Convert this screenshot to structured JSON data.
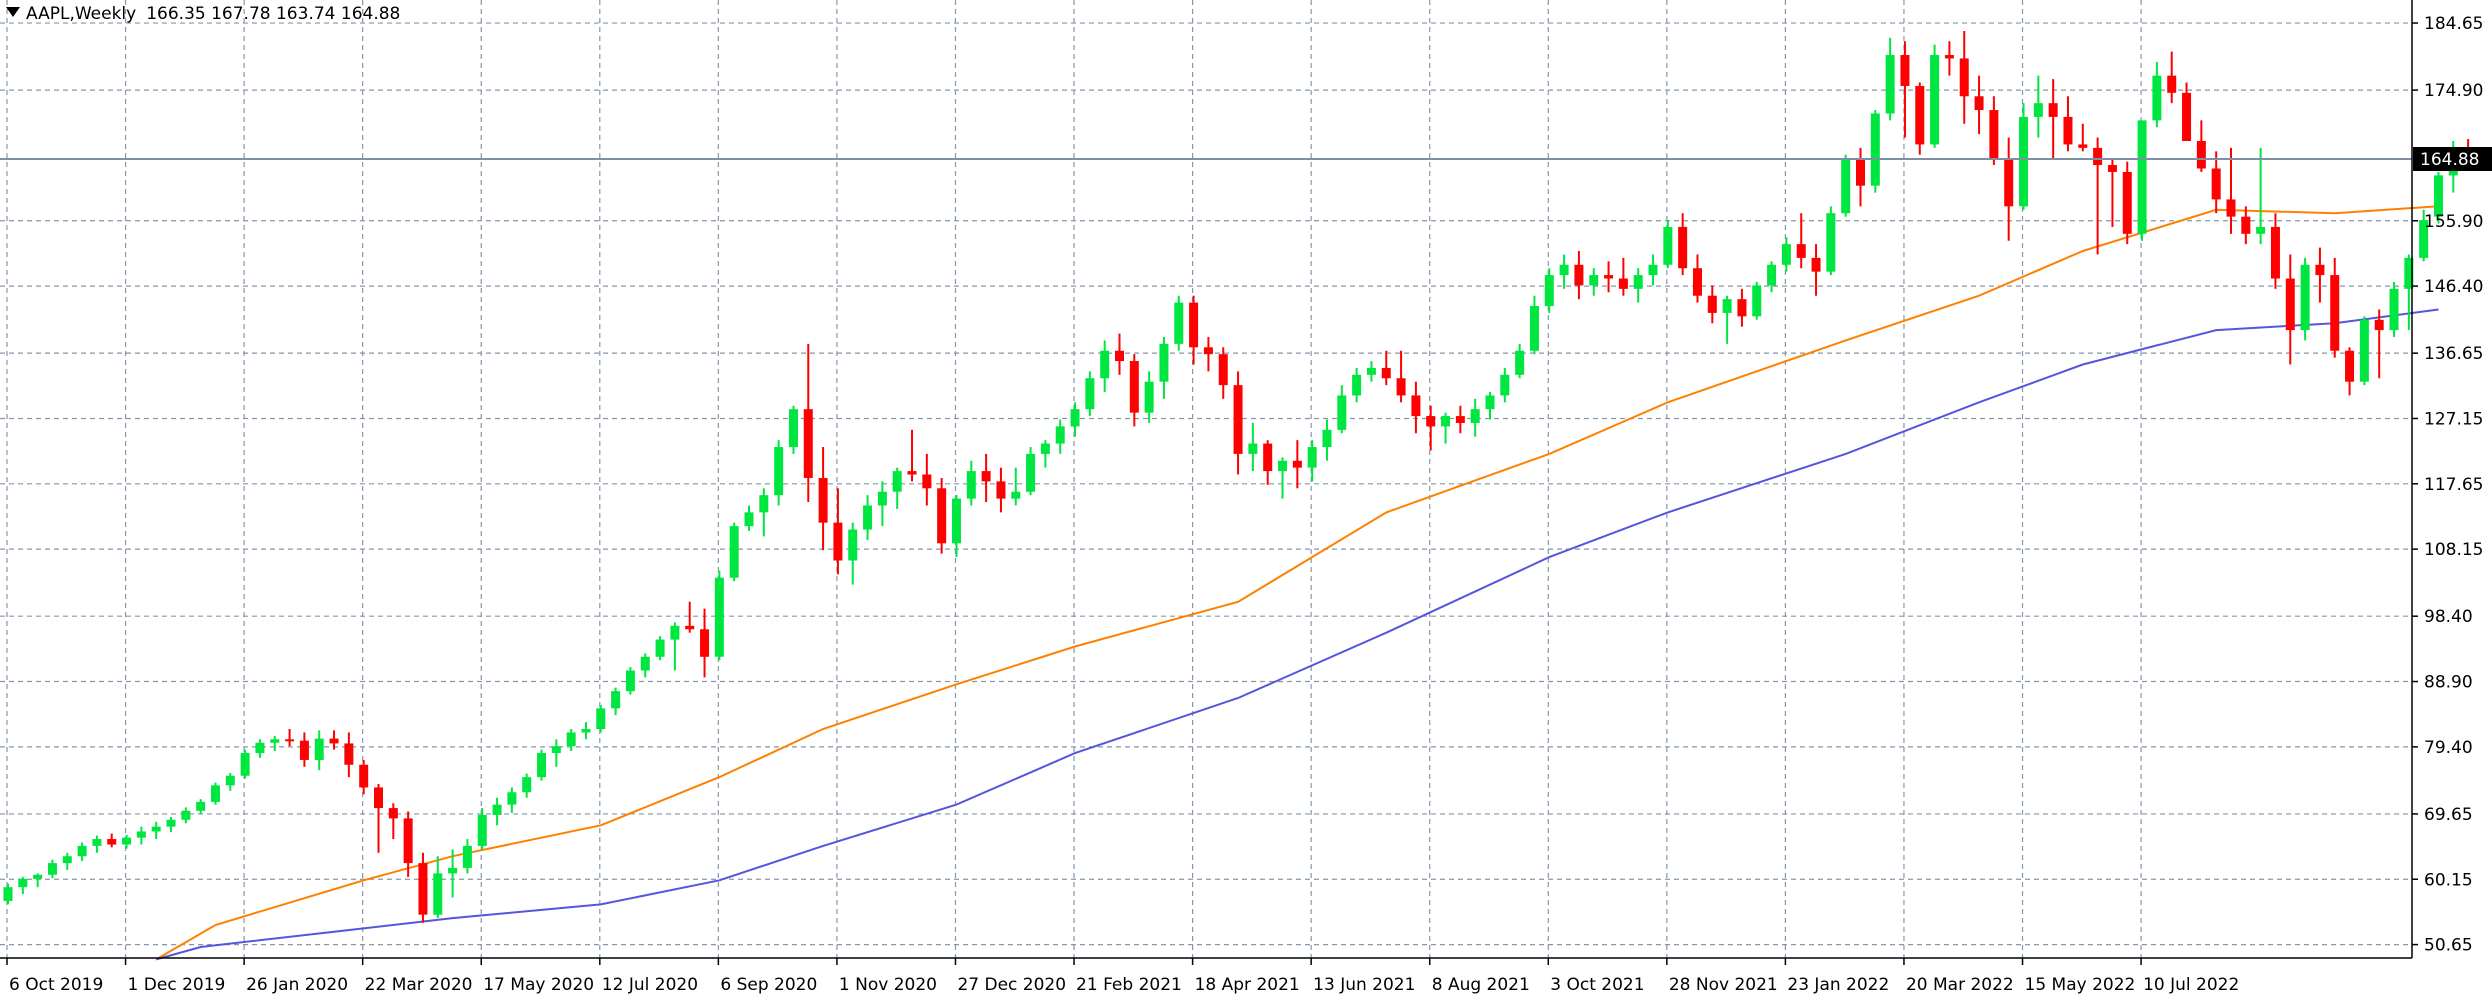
{
  "header": {
    "symbol_timeframe": "AAPL,Weekly",
    "ohlc": "166.35 167.78 163.74 164.88"
  },
  "colors": {
    "background": "#ffffff",
    "grid": "#8597ab",
    "bull": "#00e640",
    "bear": "#ff0000",
    "ma_fast": "#ff8000",
    "ma_slow": "#5555dd",
    "price_line": "#7f8fa8",
    "price_tag_bg": "#000000",
    "price_tag_text": "#ffffff"
  },
  "chart_data": {
    "type": "candlestick",
    "timeframe": "Weekly",
    "ylim": [
      48.7,
      188.0
    ],
    "current_price": 164.88,
    "current_price_label": "164.88",
    "y_ticks": [
      "184.65",
      "174.90",
      "164.88",
      "155.90",
      "146.40",
      "136.65",
      "127.15",
      "117.65",
      "108.15",
      "98.40",
      "88.90",
      "79.40",
      "69.65",
      "60.15",
      "50.65"
    ],
    "x_labels": [
      "6 Oct 2019",
      "1 Dec 2019",
      "26 Jan 2020",
      "22 Mar 2020",
      "17 May 2020",
      "12 Jul 2020",
      "6 Sep 2020",
      "1 Nov 2020",
      "27 Dec 2020",
      "21 Feb 2021",
      "18 Apr 2021",
      "13 Jun 2021",
      "8 Aug 2021",
      "3 Oct 2021",
      "28 Nov 2021",
      "23 Jan 2022",
      "20 Mar 2022",
      "15 May 2022",
      "10 Jul 2022"
    ],
    "candles": [
      [
        57.0,
        59.5,
        56.5,
        59.0
      ],
      [
        59.0,
        60.5,
        58.0,
        60.2
      ],
      [
        60.2,
        61.0,
        59.0,
        60.8
      ],
      [
        60.8,
        63.0,
        60.3,
        62.5
      ],
      [
        62.5,
        64.0,
        61.5,
        63.5
      ],
      [
        63.5,
        65.5,
        62.8,
        65.0
      ],
      [
        65.0,
        66.5,
        64.0,
        66.0
      ],
      [
        66.0,
        66.8,
        64.8,
        65.2
      ],
      [
        65.2,
        66.6,
        64.6,
        66.2
      ],
      [
        66.2,
        67.8,
        65.2,
        67.1
      ],
      [
        67.1,
        68.5,
        66.0,
        67.8
      ],
      [
        67.8,
        69.2,
        67.0,
        68.8
      ],
      [
        68.8,
        70.6,
        68.3,
        70.1
      ],
      [
        70.1,
        71.8,
        69.6,
        71.4
      ],
      [
        71.4,
        74.2,
        71.0,
        73.8
      ],
      [
        73.8,
        75.6,
        73.0,
        75.2
      ],
      [
        75.2,
        79.0,
        74.8,
        78.5
      ],
      [
        78.5,
        80.5,
        77.8,
        80.0
      ],
      [
        80.0,
        81.0,
        78.8,
        80.5
      ],
      [
        80.5,
        82.0,
        79.5,
        80.3
      ],
      [
        80.3,
        81.5,
        76.5,
        77.5
      ],
      [
        77.5,
        81.8,
        76.0,
        80.6
      ],
      [
        80.6,
        81.8,
        79.0,
        79.9
      ],
      [
        79.9,
        81.5,
        75.0,
        76.8
      ],
      [
        76.8,
        77.5,
        72.5,
        73.5
      ],
      [
        73.5,
        74.0,
        64.0,
        70.5
      ],
      [
        70.5,
        71.2,
        66.0,
        69.0
      ],
      [
        69.0,
        70.0,
        60.5,
        62.5
      ],
      [
        62.5,
        64.0,
        53.8,
        55.0
      ],
      [
        55.0,
        63.5,
        54.5,
        61.0
      ],
      [
        61.0,
        64.5,
        57.5,
        61.8
      ],
      [
        61.8,
        66.0,
        61.0,
        65.0
      ],
      [
        65.0,
        70.5,
        64.5,
        69.5
      ],
      [
        69.5,
        72.0,
        68.0,
        71.0
      ],
      [
        71.0,
        73.5,
        69.8,
        72.8
      ],
      [
        72.8,
        75.5,
        72.0,
        75.0
      ],
      [
        75.0,
        79.0,
        74.5,
        78.5
      ],
      [
        78.5,
        80.5,
        76.5,
        79.5
      ],
      [
        79.5,
        82.0,
        78.8,
        81.5
      ],
      [
        81.5,
        83.0,
        80.5,
        82.0
      ],
      [
        82.0,
        85.5,
        81.5,
        85.0
      ],
      [
        85.0,
        88.0,
        84.0,
        87.5
      ],
      [
        87.5,
        91.0,
        87.0,
        90.5
      ],
      [
        90.5,
        93.0,
        89.5,
        92.5
      ],
      [
        92.5,
        95.5,
        92.0,
        95.0
      ],
      [
        95.0,
        97.5,
        90.5,
        97.0
      ],
      [
        97.0,
        100.5,
        96.0,
        96.5
      ],
      [
        96.5,
        99.5,
        89.5,
        92.5
      ],
      [
        92.5,
        105.0,
        92.0,
        104.0
      ],
      [
        104.0,
        112.0,
        103.5,
        111.5
      ],
      [
        111.5,
        114.5,
        110.8,
        113.5
      ],
      [
        113.5,
        117.0,
        110.0,
        116.0
      ],
      [
        116.0,
        124.0,
        114.5,
        123.0
      ],
      [
        123.0,
        129.0,
        122.0,
        128.5
      ],
      [
        128.5,
        138.0,
        115.0,
        118.5
      ],
      [
        118.5,
        123.0,
        108.0,
        112.0
      ],
      [
        112.0,
        117.0,
        104.5,
        106.5
      ],
      [
        106.5,
        112.0,
        103.0,
        111.0
      ],
      [
        111.0,
        116.0,
        109.5,
        114.5
      ],
      [
        114.5,
        118.0,
        111.5,
        116.5
      ],
      [
        116.5,
        120.0,
        114.0,
        119.5
      ],
      [
        119.5,
        125.5,
        118.0,
        119.0
      ],
      [
        119.0,
        122.0,
        114.5,
        117.0
      ],
      [
        117.0,
        118.5,
        107.5,
        109.0
      ],
      [
        109.0,
        116.0,
        107.0,
        115.5
      ],
      [
        115.5,
        121.0,
        114.5,
        119.5
      ],
      [
        119.5,
        122.0,
        115.0,
        118.0
      ],
      [
        118.0,
        120.0,
        113.5,
        115.5
      ],
      [
        115.5,
        120.0,
        114.5,
        116.5
      ],
      [
        116.5,
        123.0,
        116.0,
        122.0
      ],
      [
        122.0,
        124.0,
        120.0,
        123.5
      ],
      [
        123.5,
        127.0,
        122.0,
        126.0
      ],
      [
        126.0,
        129.5,
        124.5,
        128.5
      ],
      [
        128.5,
        134.0,
        127.5,
        133.0
      ],
      [
        133.0,
        138.5,
        131.0,
        137.0
      ],
      [
        137.0,
        139.5,
        133.5,
        135.5
      ],
      [
        135.5,
        136.5,
        126.0,
        128.0
      ],
      [
        128.0,
        134.0,
        126.5,
        132.5
      ],
      [
        132.5,
        139.0,
        130.0,
        138.0
      ],
      [
        138.0,
        145.0,
        137.0,
        144.0
      ],
      [
        144.0,
        145.0,
        135.0,
        137.5
      ],
      [
        137.5,
        139.0,
        134.0,
        136.5
      ],
      [
        136.5,
        137.5,
        130.0,
        132.0
      ],
      [
        132.0,
        134.0,
        119.0,
        122.0
      ],
      [
        122.0,
        126.5,
        119.5,
        123.5
      ],
      [
        123.5,
        124.0,
        117.5,
        119.5
      ],
      [
        119.5,
        121.5,
        115.5,
        121.0
      ],
      [
        121.0,
        124.0,
        117.0,
        120.0
      ],
      [
        120.0,
        124.0,
        118.0,
        123.0
      ],
      [
        123.0,
        127.0,
        121.0,
        125.5
      ],
      [
        125.5,
        132.0,
        125.0,
        130.5
      ],
      [
        130.5,
        134.5,
        129.5,
        133.5
      ],
      [
        133.5,
        135.5,
        132.5,
        134.5
      ],
      [
        134.5,
        137.0,
        132.0,
        133.0
      ],
      [
        133.0,
        137.0,
        129.5,
        130.5
      ],
      [
        130.5,
        132.5,
        125.0,
        127.5
      ],
      [
        127.5,
        129.0,
        122.5,
        126.0
      ],
      [
        126.0,
        128.0,
        123.5,
        127.5
      ],
      [
        127.5,
        129.0,
        125.0,
        126.5
      ],
      [
        126.5,
        130.0,
        124.5,
        128.5
      ],
      [
        128.5,
        131.0,
        127.0,
        130.5
      ],
      [
        130.5,
        134.5,
        129.5,
        133.5
      ],
      [
        133.5,
        138.0,
        133.0,
        137.0
      ],
      [
        137.0,
        145.0,
        136.5,
        143.5
      ],
      [
        143.5,
        149.0,
        142.5,
        148.0
      ],
      [
        148.0,
        151.0,
        146.0,
        149.5
      ],
      [
        149.5,
        151.5,
        144.5,
        146.5
      ],
      [
        146.5,
        149.0,
        145.0,
        148.0
      ],
      [
        148.0,
        150.0,
        145.5,
        147.5
      ],
      [
        147.5,
        150.5,
        145.0,
        146.0
      ],
      [
        146.0,
        149.0,
        144.0,
        148.0
      ],
      [
        148.0,
        151.0,
        146.5,
        149.5
      ],
      [
        149.5,
        156.0,
        149.0,
        155.0
      ],
      [
        155.0,
        157.0,
        148.0,
        149.0
      ],
      [
        149.0,
        151.0,
        144.0,
        145.0
      ],
      [
        145.0,
        146.5,
        141.0,
        142.5
      ],
      [
        142.5,
        145.0,
        138.0,
        144.5
      ],
      [
        144.5,
        146.0,
        140.5,
        142.0
      ],
      [
        142.0,
        147.0,
        141.5,
        146.5
      ],
      [
        146.5,
        150.0,
        145.5,
        149.5
      ],
      [
        149.5,
        153.5,
        148.5,
        152.5
      ],
      [
        152.5,
        157.0,
        149.0,
        150.5
      ],
      [
        150.5,
        152.5,
        145.0,
        148.5
      ],
      [
        148.5,
        158.0,
        148.0,
        157.0
      ],
      [
        157.0,
        165.5,
        156.5,
        165.0
      ],
      [
        165.0,
        166.5,
        158.0,
        161.0
      ],
      [
        161.0,
        172.0,
        160.0,
        171.5
      ],
      [
        171.5,
        182.5,
        170.5,
        180.0
      ],
      [
        180.0,
        182.0,
        168.0,
        175.5
      ],
      [
        175.5,
        176.0,
        165.5,
        167.0
      ],
      [
        167.0,
        181.5,
        166.5,
        180.0
      ],
      [
        180.0,
        182.0,
        177.0,
        179.5
      ],
      [
        179.5,
        183.5,
        170.0,
        174.0
      ],
      [
        174.0,
        177.0,
        168.5,
        172.0
      ],
      [
        172.0,
        174.0,
        164.0,
        165.0
      ],
      [
        165.0,
        168.0,
        153.0,
        158.0
      ],
      [
        158.0,
        173.0,
        157.5,
        171.0
      ],
      [
        171.0,
        177.0,
        168.0,
        173.0
      ],
      [
        173.0,
        176.5,
        165.0,
        171.0
      ],
      [
        171.0,
        174.0,
        166.0,
        167.0
      ],
      [
        167.0,
        170.0,
        166.0,
        166.5
      ],
      [
        166.5,
        168.0,
        151.0,
        164.0
      ],
      [
        164.0,
        165.0,
        155.0,
        163.0
      ],
      [
        163.0,
        164.5,
        152.5,
        154.0
      ],
      [
        154.0,
        170.0,
        153.0,
        170.5
      ],
      [
        170.5,
        179.0,
        169.5,
        177.0
      ],
      [
        177.0,
        180.5,
        173.0,
        174.5
      ],
      [
        174.5,
        176.0,
        168.0,
        167.5
      ],
      [
        167.5,
        170.5,
        163.0,
        163.5
      ],
      [
        163.5,
        166.0,
        157.0,
        159.0
      ],
      [
        159.0,
        166.5,
        154.0,
        156.5
      ],
      [
        156.5,
        158.0,
        152.5,
        154.0
      ],
      [
        154.0,
        166.5,
        152.5,
        155.0
      ],
      [
        155.0,
        157.0,
        146.0,
        147.5
      ],
      [
        147.5,
        151.0,
        135.0,
        140.0
      ],
      [
        140.0,
        150.5,
        138.5,
        149.5
      ],
      [
        149.5,
        152.0,
        144.0,
        148.0
      ],
      [
        148.0,
        150.5,
        136.0,
        137.0
      ],
      [
        137.0,
        137.5,
        130.5,
        132.5
      ],
      [
        132.5,
        142.0,
        132.0,
        141.5
      ],
      [
        141.5,
        143.0,
        133.0,
        140.0
      ],
      [
        140.0,
        147.0,
        139.0,
        146.0
      ],
      [
        146.0,
        151.0,
        140.0,
        150.5
      ],
      [
        150.5,
        157.5,
        150.0,
        156.0
      ],
      [
        156.5,
        163.0,
        155.5,
        162.5
      ],
      [
        162.5,
        167.5,
        160.0,
        166.5
      ],
      [
        166.35,
        167.78,
        163.74,
        164.88
      ]
    ],
    "series": [
      {
        "name": "",
        "type": "moving-average",
        "period": 50,
        "x": [
          10,
          14,
          24,
          30,
          40,
          48,
          55,
          64,
          72,
          83,
          93,
          104,
          112,
          124,
          133,
          140,
          149,
          157,
          164
        ],
        "y": [
          48.5,
          53.5,
          60.0,
          63.5,
          68.0,
          75.0,
          82.0,
          88.5,
          94.0,
          100.5,
          113.5,
          122.0,
          129.5,
          138.5,
          145.0,
          151.5,
          157.5,
          157.0,
          158.0
        ]
      },
      {
        "name": "",
        "type": "moving-average",
        "period": 200,
        "x": [
          10,
          13,
          24,
          30,
          40,
          48,
          55,
          64,
          72,
          83,
          93,
          104,
          112,
          124,
          133,
          140,
          149,
          157,
          164
        ],
        "y": [
          48.5,
          50.3,
          53.0,
          54.5,
          56.5,
          60.0,
          65.0,
          71.0,
          78.5,
          86.5,
          96.0,
          107.0,
          113.5,
          122.0,
          129.5,
          135.0,
          140.0,
          141.0,
          143.0
        ]
      }
    ]
  }
}
